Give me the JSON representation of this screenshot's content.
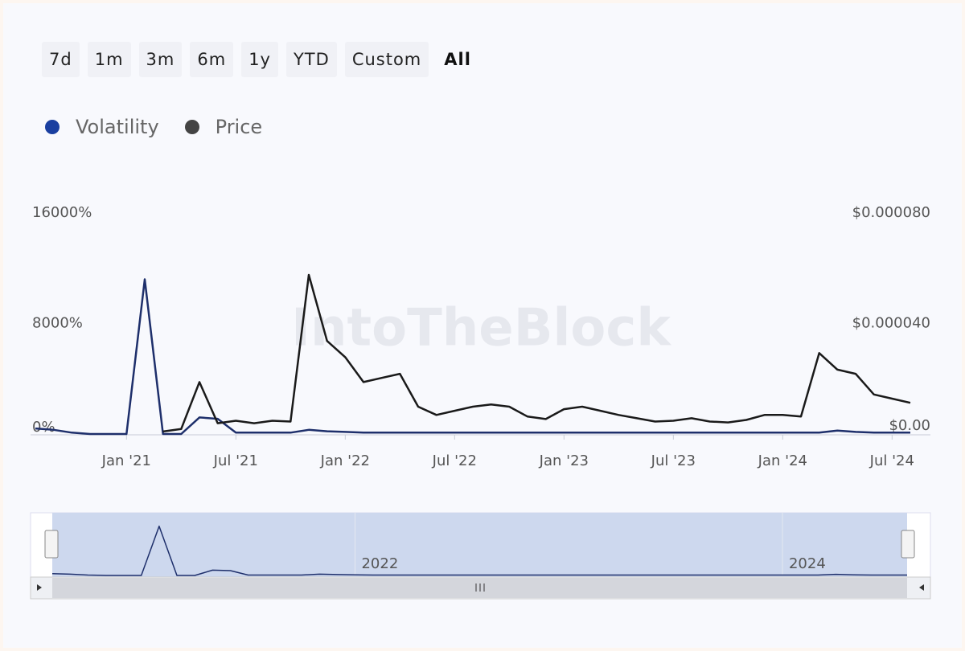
{
  "range_buttons": [
    "7d",
    "1m",
    "3m",
    "6m",
    "1y",
    "YTD",
    "Custom",
    "All"
  ],
  "active_button": 7,
  "watermark": "IntoTheBlock",
  "chart_data": {
    "type": "line",
    "x": [
      "2020-08",
      "2020-09",
      "2020-10",
      "2020-11",
      "2020-12",
      "2021-01",
      "2021-02",
      "2021-03",
      "2021-04",
      "2021-05",
      "2021-06",
      "2021-07",
      "2021-08",
      "2021-09",
      "2021-10",
      "2021-11",
      "2021-12",
      "2022-01",
      "2022-02",
      "2022-03",
      "2022-04",
      "2022-05",
      "2022-06",
      "2022-07",
      "2022-08",
      "2022-09",
      "2022-10",
      "2022-11",
      "2022-12",
      "2023-01",
      "2023-02",
      "2023-03",
      "2023-04",
      "2023-05",
      "2023-06",
      "2023-07",
      "2023-08",
      "2023-09",
      "2023-10",
      "2023-11",
      "2023-12",
      "2024-01",
      "2024-02",
      "2024-03",
      "2024-04",
      "2024-05",
      "2024-06",
      "2024-07",
      "2024-08"
    ],
    "xlim": [
      "2020-08",
      "2024-08"
    ],
    "xticks": [
      {
        "value": "2021-01",
        "label": "Jan '21"
      },
      {
        "value": "2021-07",
        "label": "Jul '21"
      },
      {
        "value": "2022-01",
        "label": "Jan '22"
      },
      {
        "value": "2022-07",
        "label": "Jul '22"
      },
      {
        "value": "2023-01",
        "label": "Jan '23"
      },
      {
        "value": "2023-07",
        "label": "Jul '23"
      },
      {
        "value": "2024-01",
        "label": "Jan '24"
      },
      {
        "value": "2024-07",
        "label": "Jul '24"
      }
    ],
    "ylim": [
      0,
      16000
    ],
    "yticks": [
      {
        "value": 0,
        "label": "0%"
      },
      {
        "value": 8000,
        "label": "8000%"
      },
      {
        "value": 16000,
        "label": "16000%"
      }
    ],
    "y2lim": [
      0,
      8e-05
    ],
    "y2ticks": [
      {
        "value": 0,
        "label": "$0.00"
      },
      {
        "value": 4e-05,
        "label": "$0.000040"
      },
      {
        "value": 8e-05,
        "label": "$0.000080"
      }
    ],
    "grid": false,
    "series": [
      {
        "name": "Volatility",
        "color": "#1e2f6b",
        "legend_color": "#1a3fa0",
        "values": [
          400,
          300,
          100,
          0,
          0,
          0,
          11200,
          0,
          0,
          1200,
          1100,
          100,
          100,
          100,
          100,
          300,
          200,
          150,
          100,
          100,
          100,
          100,
          100,
          100,
          100,
          100,
          100,
          100,
          100,
          100,
          100,
          100,
          100,
          100,
          100,
          100,
          100,
          100,
          100,
          100,
          100,
          100,
          100,
          100,
          250,
          150,
          100,
          100,
          100
        ]
      },
      {
        "name": "Price",
        "color": "#1a1a1a",
        "legend_color": "#444444",
        "axis": "y2",
        "values": [
          null,
          null,
          null,
          null,
          null,
          null,
          null,
          9e-07,
          1.8e-06,
          1.88e-05,
          3.9e-06,
          4.8e-06,
          3.9e-06,
          4.8e-06,
          4.5e-06,
          5.76e-05,
          3.37e-05,
          2.78e-05,
          1.88e-05,
          2.03e-05,
          2.18e-05,
          9.9e-06,
          6.9e-06,
          8.4e-06,
          9.9e-06,
          1.07e-05,
          9.9e-06,
          6.3e-06,
          5.4e-06,
          9e-06,
          9.9e-06,
          8.4e-06,
          6.9e-06,
          5.7e-06,
          4.5e-06,
          4.8e-06,
          5.7e-06,
          4.5e-06,
          4.2e-06,
          5.1e-06,
          6.9e-06,
          6.9e-06,
          6.3e-06,
          2.93e-05,
          2.33e-05,
          2.18e-05,
          1.43e-05,
          1.28e-05,
          1.13e-05
        ]
      }
    ],
    "navigator_labels": [
      {
        "value": "2022-01",
        "label": "2022"
      },
      {
        "value": "2024-01",
        "label": "2024"
      }
    ]
  }
}
